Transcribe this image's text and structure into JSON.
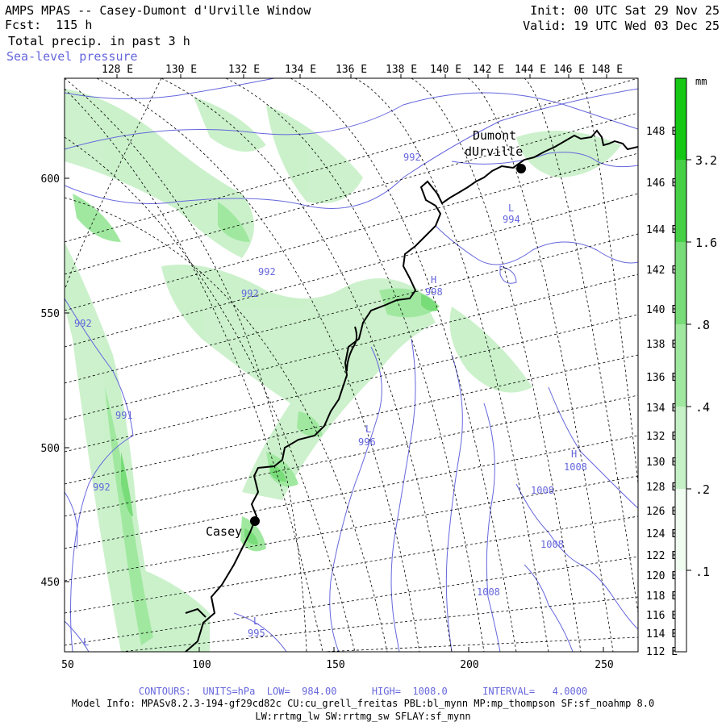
{
  "header": {
    "title": "AMPS MPAS -- Casey-Dumont d'Urville Window",
    "forecast": "Fcst:  115 h",
    "field": "Total precip. in past 3 h",
    "overlay": "Sea-level pressure",
    "init": "Init: 00 UTC Sat 29 Nov 25",
    "valid": "Valid: 19 UTC Wed 03 Dec 25"
  },
  "map": {
    "top_longitude_labels": [
      "128 E",
      "130 E",
      "132 E",
      "134 E",
      "136 E",
      "138 E",
      "140 E",
      "142 E",
      "144 E",
      "146 E",
      "148 E"
    ],
    "right_longitude_labels": [
      "148 E",
      "146 E",
      "144 E",
      "142 E",
      "140 E",
      "138 E",
      "136 E",
      "134 E",
      "132 E",
      "130 E",
      "128 E",
      "126 E",
      "124 E",
      "122 E",
      "120 E",
      "118 E",
      "116 E",
      "114 E",
      "112 E"
    ],
    "x_axis_ticks": [
      "50",
      "100",
      "150",
      "200",
      "250"
    ],
    "y_axis_ticks": [
      "600",
      "550",
      "500",
      "450"
    ],
    "places": [
      {
        "name": "Casey"
      },
      {
        "name": "Dumont dUrville",
        "line1": "Dumont",
        "line2": "dUrville"
      }
    ],
    "contour_labels": [
      "992",
      "992",
      "992",
      "992",
      "991",
      "992",
      "994",
      "998",
      "996",
      "1008",
      "1008",
      "1008",
      "1008",
      "995"
    ],
    "pressure_centers": [
      "H",
      "H",
      "L",
      "L",
      "L",
      "L"
    ]
  },
  "colorbar": {
    "unit": "mm",
    "levels": [
      ".1",
      ".2",
      ".4",
      ".8",
      "1.6",
      "3.2"
    ],
    "colors": [
      "#f0fcf0",
      "#c6f0c6",
      "#a0e8a0",
      "#78dc78",
      "#46d046",
      "#14c814"
    ]
  },
  "footer": {
    "contours": "CONTOURS:  UNITS=hPa  LOW=  984.00      HIGH=  1008.0      INTERVAL=   4.0000",
    "model_info": "Model Info: MPASv8.2.3-194-gf29cd82c CU:cu_grell_freitas PBL:bl_mynn MP:mp_thompson SF:sf_noahmp 8.0",
    "physics": "LW:rrtmg_lw SW:rrtmg_sw SFLAY:sf_mynn"
  },
  "colors": {
    "contour": "#6666dd",
    "grid": "#000000",
    "coast": "#000000"
  }
}
